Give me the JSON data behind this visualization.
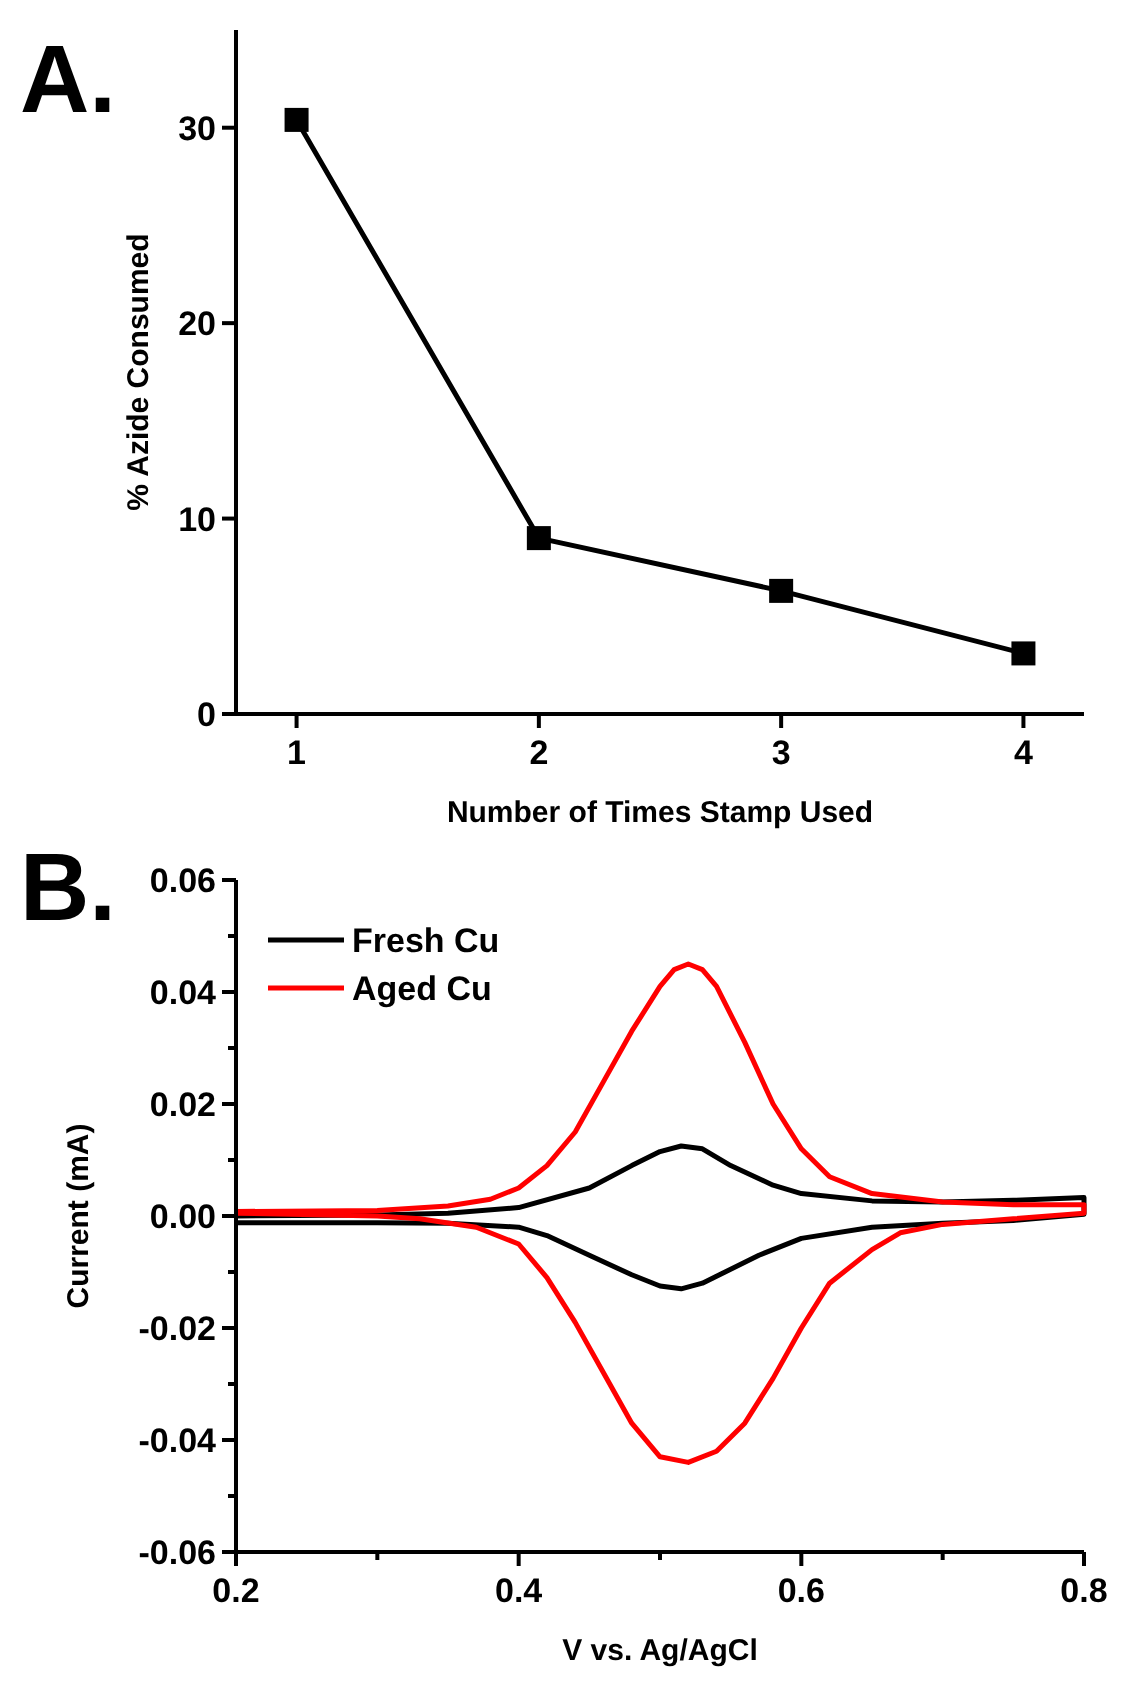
{
  "chart_data": [
    {
      "type": "line",
      "title": "A.",
      "xlabel": "Number of Times Stamp Used",
      "ylabel": "% Azide Consumed",
      "xlim": [
        0.75,
        4.25
      ],
      "ylim": [
        0,
        35
      ],
      "xticks": [
        1,
        2,
        3,
        4
      ],
      "yticks": [
        0,
        10,
        20,
        30
      ],
      "marker": "square",
      "grid": false,
      "legend": false,
      "series": [
        {
          "color": "#000000",
          "x": [
            1,
            2,
            3,
            4
          ],
          "values": [
            30.4,
            9.0,
            6.3,
            3.1
          ]
        }
      ]
    },
    {
      "type": "line",
      "title": "B.",
      "xlabel": "V vs. Ag/AgCl",
      "ylabel": "Current (mA)",
      "xlim": [
        0.2,
        0.8
      ],
      "ylim": [
        -0.06,
        0.06
      ],
      "xticks": [
        {
          "value": 0.2,
          "label": "0.2"
        },
        {
          "value": 0.3,
          "label": null
        },
        {
          "value": 0.4,
          "label": "0.4"
        },
        {
          "value": 0.5,
          "label": null
        },
        {
          "value": 0.6,
          "label": "0.6"
        },
        {
          "value": 0.7,
          "label": null
        },
        {
          "value": 0.8,
          "label": "0.8"
        }
      ],
      "yticks": [
        {
          "value": -0.06,
          "label": "-0.06"
        },
        {
          "value": -0.05,
          "label": null
        },
        {
          "value": -0.04,
          "label": "-0.04"
        },
        {
          "value": -0.03,
          "label": null
        },
        {
          "value": -0.02,
          "label": "-0.02"
        },
        {
          "value": -0.01,
          "label": null
        },
        {
          "value": 0,
          "label": "0.00"
        },
        {
          "value": 0.01,
          "label": null
        },
        {
          "value": 0.02,
          "label": "0.02"
        },
        {
          "value": 0.03,
          "label": null
        },
        {
          "value": 0.04,
          "label": "0.04"
        },
        {
          "value": 0.05,
          "label": null
        },
        {
          "value": 0.06,
          "label": "0.06"
        }
      ],
      "grid": false,
      "legend": "top left",
      "series": [
        {
          "name": "Fresh Cu",
          "color": "#000000",
          "x": [
            0.2,
            0.3,
            0.35,
            0.4,
            0.45,
            0.48,
            0.5,
            0.515,
            0.53,
            0.55,
            0.58,
            0.6,
            0.65,
            0.7,
            0.75,
            0.8,
            0.8,
            0.75,
            0.7,
            0.65,
            0.6,
            0.57,
            0.55,
            0.53,
            0.515,
            0.5,
            0.48,
            0.45,
            0.42,
            0.4,
            0.35,
            0.3,
            0.2
          ],
          "values": [
            0.0,
            0.0002,
            0.0005,
            0.0015,
            0.005,
            0.009,
            0.0115,
            0.0125,
            0.012,
            0.009,
            0.0055,
            0.004,
            0.0027,
            0.0025,
            0.0028,
            0.0033,
            0.0003,
            -0.0008,
            -0.0013,
            -0.002,
            -0.004,
            -0.007,
            -0.0095,
            -0.012,
            -0.013,
            -0.0125,
            -0.0105,
            -0.007,
            -0.0035,
            -0.002,
            -0.0013,
            -0.0012,
            -0.0012
          ]
        },
        {
          "name": "Aged Cu",
          "color": "#ff0000",
          "x": [
            0.2,
            0.3,
            0.35,
            0.38,
            0.4,
            0.42,
            0.44,
            0.46,
            0.48,
            0.5,
            0.51,
            0.52,
            0.53,
            0.54,
            0.56,
            0.58,
            0.6,
            0.62,
            0.65,
            0.7,
            0.75,
            0.8,
            0.8,
            0.75,
            0.7,
            0.67,
            0.65,
            0.62,
            0.6,
            0.58,
            0.56,
            0.54,
            0.52,
            0.5,
            0.48,
            0.46,
            0.44,
            0.42,
            0.4,
            0.37,
            0.33,
            0.3,
            0.2
          ],
          "values": [
            0.0008,
            0.001,
            0.0018,
            0.003,
            0.005,
            0.009,
            0.015,
            0.024,
            0.033,
            0.041,
            0.044,
            0.045,
            0.044,
            0.041,
            0.031,
            0.02,
            0.012,
            0.007,
            0.004,
            0.0025,
            0.002,
            0.002,
            0.0005,
            -0.0005,
            -0.0015,
            -0.003,
            -0.006,
            -0.012,
            -0.02,
            -0.029,
            -0.037,
            -0.042,
            -0.044,
            -0.043,
            -0.037,
            -0.028,
            -0.019,
            -0.011,
            -0.005,
            -0.002,
            -0.0005,
            0.0,
            0.0005
          ]
        }
      ]
    }
  ]
}
